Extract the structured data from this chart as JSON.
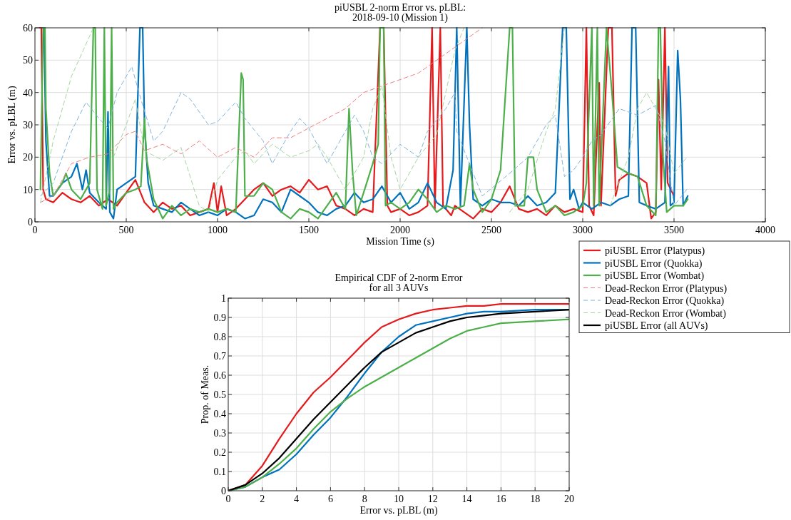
{
  "chart_data": [
    {
      "type": "line",
      "title": "piUSBL 2-norm Error vs. pLBL:\n2018-09-10 (Mission 1)",
      "xlabel": "Mission Time (s)",
      "ylabel": "Error vs. pLBL (m)",
      "xlim": [
        0,
        4000
      ],
      "ylim": [
        0,
        60
      ],
      "xticks": [
        0,
        500,
        1000,
        1500,
        2000,
        2500,
        3000,
        3500,
        4000
      ],
      "yticks": [
        0,
        10,
        20,
        30,
        40,
        50,
        60
      ],
      "grid": true,
      "legend": "bottom right",
      "marker": "none",
      "series": [
        {
          "name": "piUSBL Error (Platypus)",
          "color": "#e41a1c",
          "line_style": "solid",
          "x": [
            25,
            35,
            45,
            60,
            100,
            150,
            200,
            250,
            300,
            350,
            400,
            450,
            500,
            550,
            600,
            650,
            700,
            750,
            800,
            850,
            900,
            950,
            980,
            1000,
            1020,
            1050,
            1100,
            1150,
            1200,
            1250,
            1300,
            1350,
            1400,
            1450,
            1500,
            1550,
            1600,
            1650,
            1700,
            1750,
            1800,
            1850,
            1890,
            1910,
            1930,
            1950,
            2000,
            2050,
            2100,
            2150,
            2175,
            2190,
            2220,
            2235,
            2280,
            2300,
            2350,
            2400,
            2450,
            2500,
            2550,
            2600,
            2650,
            2700,
            2750,
            2800,
            2850,
            2900,
            2950,
            3000,
            3020,
            3035,
            3060,
            3090,
            3100,
            3140,
            3160,
            3180,
            3200,
            3250,
            3300,
            3350,
            3375,
            3400,
            3415,
            3430,
            3450,
            3465,
            3500
          ],
          "values": [
            60,
            60,
            10,
            7,
            6,
            9,
            7,
            6,
            8,
            5,
            7,
            5,
            9,
            13,
            6,
            3,
            6,
            4,
            5,
            2,
            3,
            4,
            12,
            3,
            11,
            2,
            4,
            7,
            10,
            12,
            8,
            10,
            11,
            9,
            13,
            10,
            11,
            5,
            4,
            2,
            4,
            3,
            60,
            60,
            5,
            3,
            4,
            2,
            3,
            5,
            60,
            4,
            60,
            5,
            2,
            5,
            3,
            1,
            4,
            3,
            6,
            11,
            4,
            3,
            4,
            2,
            5,
            3,
            4,
            3,
            60,
            5,
            2,
            43,
            5,
            60,
            60,
            8,
            13,
            15,
            14,
            12,
            1,
            3,
            44,
            10,
            60,
            12,
            8
          ]
        },
        {
          "name": "piUSBL Error (Quokka)",
          "color": "#0072bd",
          "line_style": "solid",
          "x": [
            42,
            50,
            60,
            80,
            100,
            150,
            200,
            230,
            260,
            280,
            300,
            350,
            390,
            400,
            410,
            430,
            450,
            500,
            550,
            575,
            590,
            600,
            620,
            650,
            700,
            750,
            800,
            850,
            900,
            950,
            1000,
            1050,
            1100,
            1150,
            1200,
            1250,
            1300,
            1350,
            1400,
            1450,
            1500,
            1550,
            1600,
            1650,
            1700,
            1750,
            1800,
            1850,
            1900,
            1950,
            2000,
            2050,
            2100,
            2150,
            2200,
            2250,
            2290,
            2310,
            2330,
            2365,
            2380,
            2400,
            2450,
            2500,
            2550,
            2600,
            2650,
            2700,
            2750,
            2800,
            2850,
            2890,
            2910,
            2930,
            2950,
            2980,
            3000,
            3050,
            3100,
            3150,
            3200,
            3250,
            3270,
            3290,
            3310,
            3350,
            3400,
            3450,
            3470,
            3480,
            3500,
            3520,
            3535,
            3550,
            3575
          ],
          "values": [
            60,
            60,
            25,
            8,
            8,
            12,
            14,
            18,
            10,
            16,
            9,
            6,
            4,
            34,
            3,
            1,
            10,
            12,
            14,
            60,
            60,
            30,
            12,
            5,
            4,
            3,
            6,
            4,
            2,
            3,
            2,
            4,
            3,
            1,
            2,
            7,
            6,
            3,
            10,
            8,
            6,
            3,
            2,
            4,
            5,
            9,
            6,
            7,
            11,
            6,
            9,
            4,
            6,
            12,
            6,
            4,
            16,
            60,
            5,
            60,
            30,
            7,
            5,
            7,
            6,
            6,
            5,
            8,
            5,
            6,
            9,
            60,
            60,
            7,
            10,
            4,
            6,
            4,
            6,
            5,
            7,
            8,
            60,
            60,
            6,
            5,
            4,
            6,
            48,
            5,
            6,
            53,
            38,
            5,
            8
          ]
        },
        {
          "name": "piUSBL Error (Wombat)",
          "color": "#4daf4a",
          "line_style": "solid",
          "x": [
            30,
            45,
            55,
            60,
            80,
            100,
            150,
            170,
            200,
            250,
            300,
            320,
            330,
            340,
            370,
            380,
            390,
            410,
            420,
            430,
            450,
            500,
            550,
            580,
            600,
            610,
            650,
            700,
            750,
            800,
            850,
            900,
            950,
            1000,
            1050,
            1100,
            1130,
            1140,
            1150,
            1200,
            1250,
            1300,
            1350,
            1400,
            1450,
            1500,
            1550,
            1600,
            1650,
            1700,
            1720,
            1740,
            1760,
            1800,
            1850,
            1880,
            1890,
            1910,
            1920,
            1950,
            2000,
            2050,
            2100,
            2150,
            2200,
            2250,
            2300,
            2350,
            2380,
            2400,
            2450,
            2500,
            2550,
            2600,
            2615,
            2630,
            2680,
            2700,
            2730,
            2750,
            2800,
            2850,
            2900,
            2950,
            3000,
            3020,
            3050,
            3060,
            3080,
            3090,
            3130,
            3160,
            3190,
            3250,
            3300,
            3350,
            3400,
            3415,
            3425,
            3440,
            3460,
            3500,
            3550,
            3575
          ],
          "values": [
            10,
            60,
            60,
            35,
            15,
            8,
            12,
            15,
            10,
            7,
            12,
            60,
            60,
            10,
            4,
            60,
            5,
            10,
            60,
            4,
            6,
            9,
            10,
            11,
            32,
            20,
            7,
            1,
            5,
            2,
            4,
            3,
            4,
            3,
            4,
            3,
            46,
            44,
            8,
            8,
            12,
            10,
            3,
            1,
            4,
            3,
            1,
            5,
            9,
            4,
            35,
            15,
            2,
            9,
            18,
            24,
            60,
            60,
            5,
            6,
            4,
            6,
            10,
            7,
            3,
            5,
            4,
            5,
            18,
            10,
            3,
            7,
            16,
            60,
            60,
            5,
            5,
            20,
            20,
            10,
            3,
            5,
            2,
            3,
            5,
            12,
            60,
            5,
            60,
            5,
            60,
            40,
            17,
            15,
            14,
            5,
            2,
            60,
            60,
            20,
            3,
            5,
            5,
            7
          ]
        },
        {
          "name": "Dead-Reckon Error (Platypus)",
          "color": "#f08080",
          "line_style": "dashed",
          "x": [
            30,
            100,
            200,
            300,
            400,
            500,
            550,
            600,
            700,
            800,
            900,
            1000,
            1100,
            1200,
            1300,
            1400,
            1500,
            1600,
            1700,
            1800,
            1900,
            2000,
            2100,
            2200,
            2300,
            2400,
            2450
          ],
          "values": [
            6,
            8,
            18,
            20,
            21,
            27,
            28,
            22,
            24,
            21,
            25,
            20,
            23,
            20,
            26,
            26,
            29,
            32,
            35,
            40,
            42,
            44,
            46,
            50,
            54,
            58,
            60
          ]
        },
        {
          "name": "Dead-Reckon Error (Quokka)",
          "color": "#7fb5e0",
          "line_style": "dashed",
          "x": [
            30,
            100,
            200,
            280,
            350,
            400,
            450,
            530,
            580,
            650,
            700,
            800,
            850,
            950,
            1000,
            1100,
            1150,
            1250,
            1300,
            1400,
            1450,
            1500,
            1600,
            1700,
            1750,
            1800,
            1850,
            1900,
            2000,
            2100,
            2150,
            2250,
            2300,
            2310,
            2400,
            2450,
            2600,
            2700,
            2800,
            2850,
            2900,
            2950,
            3000,
            3050,
            3100,
            3200,
            3300,
            3400,
            3450,
            3500,
            3570
          ],
          "values": [
            8,
            12,
            28,
            37,
            32,
            29,
            40,
            48,
            38,
            25,
            28,
            40,
            38,
            30,
            31,
            37,
            32,
            25,
            18,
            28,
            32,
            29,
            18,
            28,
            33,
            28,
            20,
            18,
            24,
            20,
            28,
            35,
            40,
            28,
            15,
            8,
            15,
            20,
            30,
            33,
            14,
            16,
            20,
            25,
            27,
            35,
            33,
            36,
            25,
            5,
            10
          ]
        },
        {
          "name": "Dead-Reckon Error (Wombat)",
          "color": "#a5d6a0",
          "line_style": "dashed",
          "x": [
            30,
            100,
            200,
            320,
            330,
            430,
            500,
            550,
            600,
            700,
            800,
            900,
            950,
            1000,
            1100,
            1150,
            1200,
            1300,
            1400,
            1500,
            1550,
            1600,
            1700,
            1800,
            1850,
            1900,
            1950,
            2000,
            2100,
            2200,
            2300,
            2350,
            2360,
            2600,
            2700,
            2800,
            2850,
            2900,
            2910,
            3150,
            3250,
            3300,
            3350,
            3450,
            3500,
            3570
          ],
          "values": [
            6,
            25,
            45,
            60,
            null,
            20,
            30,
            38,
            22,
            19,
            23,
            5,
            3,
            13,
            20,
            22,
            18,
            24,
            20,
            22,
            24,
            20,
            10,
            20,
            35,
            42,
            20,
            10,
            20,
            27,
            53,
            60,
            null,
            3,
            10,
            28,
            35,
            60,
            null,
            5,
            20,
            35,
            40,
            30,
            15,
            20
          ]
        }
      ]
    },
    {
      "type": "line",
      "title": "Empirical CDF of 2-norm Error\nfor all 3 AUVs",
      "xlabel": "Error vs. pLBL (m)",
      "ylabel": "Prop. of Meas.",
      "xlim": [
        0,
        20
      ],
      "ylim": [
        0,
        1
      ],
      "xticks": [
        0,
        2,
        4,
        6,
        8,
        10,
        12,
        14,
        16,
        18,
        20
      ],
      "yticks": [
        0,
        0.1,
        0.2,
        0.3,
        0.4,
        0.5,
        0.6,
        0.7,
        0.8,
        0.9,
        1
      ],
      "grid": true,
      "legend": "top right",
      "marker": "none",
      "line_style": "solid",
      "x": [
        0,
        1,
        2,
        3,
        4,
        5,
        6,
        7,
        8,
        9,
        10,
        11,
        12,
        13,
        14,
        15,
        16,
        18,
        20
      ],
      "series": [
        {
          "color": "#e41a1c",
          "values": [
            0,
            0.03,
            0.13,
            0.27,
            0.4,
            0.51,
            0.59,
            0.68,
            0.77,
            0.85,
            0.89,
            0.92,
            0.94,
            0.95,
            0.96,
            0.96,
            0.97,
            0.97,
            0.97
          ]
        },
        {
          "color": "#0072bd",
          "values": [
            0,
            0.02,
            0.07,
            0.11,
            0.19,
            0.29,
            0.38,
            0.49,
            0.61,
            0.72,
            0.8,
            0.86,
            0.88,
            0.9,
            0.92,
            0.93,
            0.93,
            0.94,
            0.94
          ]
        },
        {
          "color": "#4daf4a",
          "values": [
            0,
            0.02,
            0.07,
            0.14,
            0.22,
            0.32,
            0.41,
            0.48,
            0.54,
            0.59,
            0.64,
            0.69,
            0.74,
            0.79,
            0.83,
            0.85,
            0.87,
            0.88,
            0.89
          ]
        },
        {
          "name": "piUSBL Error (all AUVs)",
          "color": "#000000",
          "values": [
            0,
            0.03,
            0.09,
            0.17,
            0.27,
            0.37,
            0.46,
            0.55,
            0.64,
            0.72,
            0.77,
            0.82,
            0.85,
            0.88,
            0.9,
            0.91,
            0.92,
            0.93,
            0.94
          ]
        }
      ]
    }
  ]
}
